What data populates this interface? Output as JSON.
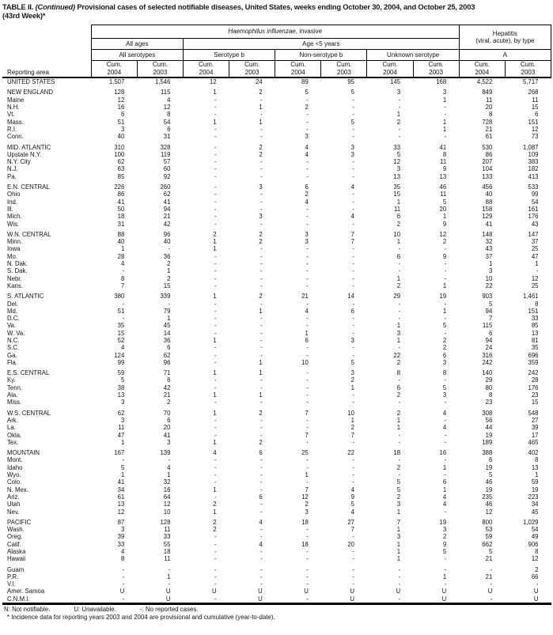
{
  "title": {
    "part1": "TABLE II. ",
    "part2": "(Continued)",
    "part3": " Provisional cases of selected notifiable diseases, United States, weeks ending October 30, 2004, and October 25, 2003",
    "line2": "(43rd Week)*"
  },
  "header": {
    "reporting_area": "Reporting area",
    "hi_italic": "Haemophilus influenzae",
    "hi_rest": ", invasive",
    "hep_line1": "Hepatitis",
    "hep_line2": "(viral, acute), by type",
    "all_ages": "All ages",
    "age_under5": "Age <5 years",
    "all_serotypes": "All serotypes",
    "serotype_b": "Serotype b",
    "non_serotype_b": "Non-serotype b",
    "unknown_serotype": "Unknown serotype",
    "hep_a": "A",
    "cum": "Cum.",
    "y2004": "2004",
    "y2003": "2003"
  },
  "rows": [
    {
      "label": "UNITED STATES",
      "kind": "total",
      "values": [
        "1,507",
        "1,546",
        "12",
        "24",
        "89",
        "95",
        "145",
        "168",
        "4,522",
        "5,717"
      ]
    },
    {
      "gap": true
    },
    {
      "label": "NEW ENGLAND",
      "kind": "total",
      "values": [
        "128",
        "115",
        "1",
        "2",
        "5",
        "5",
        "3",
        "3",
        "849",
        "268"
      ]
    },
    {
      "label": "Maine",
      "kind": "state",
      "values": [
        "12",
        "4",
        "-",
        "-",
        "-",
        "-",
        "-",
        "1",
        "11",
        "11"
      ]
    },
    {
      "label": "N.H.",
      "kind": "state",
      "values": [
        "16",
        "12",
        "-",
        "1",
        "2",
        "-",
        "-",
        "-",
        "20",
        "15"
      ]
    },
    {
      "label": "Vt.",
      "kind": "state",
      "values": [
        "6",
        "8",
        "-",
        "-",
        "-",
        "-",
        "1",
        "-",
        "8",
        "6"
      ]
    },
    {
      "label": "Mass.",
      "kind": "state",
      "values": [
        "51",
        "54",
        "1",
        "1",
        "-",
        "5",
        "2",
        "1",
        "728",
        "151"
      ]
    },
    {
      "label": "R.I.",
      "kind": "state",
      "values": [
        "3",
        "6",
        "-",
        "-",
        "-",
        "-",
        "-",
        "1",
        "21",
        "12"
      ]
    },
    {
      "label": "Conn.",
      "kind": "state",
      "values": [
        "40",
        "31",
        "-",
        "-",
        "3",
        "-",
        "-",
        "-",
        "61",
        "73"
      ]
    },
    {
      "gap": true
    },
    {
      "label": "MID. ATLANTIC",
      "kind": "total",
      "values": [
        "310",
        "328",
        "-",
        "2",
        "4",
        "3",
        "33",
        "41",
        "530",
        "1,087"
      ]
    },
    {
      "label": "Upstate N.Y.",
      "kind": "state",
      "values": [
        "100",
        "119",
        "-",
        "2",
        "4",
        "3",
        "5",
        "8",
        "86",
        "109"
      ]
    },
    {
      "label": "N.Y. City",
      "kind": "state",
      "values": [
        "62",
        "57",
        "-",
        "-",
        "-",
        "-",
        "12",
        "11",
        "207",
        "383"
      ]
    },
    {
      "label": "N.J.",
      "kind": "state",
      "values": [
        "63",
        "60",
        "-",
        "-",
        "-",
        "-",
        "3",
        "9",
        "104",
        "182"
      ]
    },
    {
      "label": "Pa.",
      "kind": "state",
      "values": [
        "85",
        "92",
        "-",
        "-",
        "-",
        "-",
        "13",
        "13",
        "133",
        "413"
      ]
    },
    {
      "gap": true
    },
    {
      "label": "E.N. CENTRAL",
      "kind": "total",
      "values": [
        "226",
        "260",
        "-",
        "3",
        "6",
        "4",
        "35",
        "46",
        "456",
        "533"
      ]
    },
    {
      "label": "Ohio",
      "kind": "state",
      "values": [
        "86",
        "62",
        "-",
        "-",
        "2",
        "-",
        "15",
        "11",
        "40",
        "99"
      ]
    },
    {
      "label": "Ind.",
      "kind": "state",
      "values": [
        "41",
        "41",
        "-",
        "-",
        "4",
        "-",
        "1",
        "5",
        "88",
        "54"
      ]
    },
    {
      "label": "Ill.",
      "kind": "state",
      "values": [
        "50",
        "94",
        "-",
        "-",
        "-",
        "-",
        "11",
        "20",
        "158",
        "161"
      ]
    },
    {
      "label": "Mich.",
      "kind": "state",
      "values": [
        "18",
        "21",
        "-",
        "3",
        "-",
        "4",
        "6",
        "1",
        "129",
        "176"
      ]
    },
    {
      "label": "Wis.",
      "kind": "state",
      "values": [
        "31",
        "42",
        "-",
        "-",
        "-",
        "-",
        "2",
        "9",
        "41",
        "43"
      ]
    },
    {
      "gap": true
    },
    {
      "label": "W.N. CENTRAL",
      "kind": "total",
      "values": [
        "88",
        "96",
        "2",
        "2",
        "3",
        "7",
        "10",
        "12",
        "148",
        "147"
      ]
    },
    {
      "label": "Minn.",
      "kind": "state",
      "values": [
        "40",
        "40",
        "1",
        "2",
        "3",
        "7",
        "1",
        "2",
        "32",
        "37"
      ]
    },
    {
      "label": "Iowa",
      "kind": "state",
      "values": [
        "1",
        "-",
        "1",
        "-",
        "-",
        "-",
        "-",
        "-",
        "43",
        "25"
      ]
    },
    {
      "label": "Mo.",
      "kind": "state",
      "values": [
        "28",
        "36",
        "-",
        "-",
        "-",
        "-",
        "6",
        "9",
        "37",
        "47"
      ]
    },
    {
      "label": "N. Dak.",
      "kind": "state",
      "values": [
        "4",
        "2",
        "-",
        "-",
        "-",
        "-",
        "-",
        "-",
        "1",
        "1"
      ]
    },
    {
      "label": "S. Dak.",
      "kind": "state",
      "values": [
        "-",
        "1",
        "-",
        "-",
        "-",
        "-",
        "-",
        "-",
        "3",
        "-"
      ]
    },
    {
      "label": "Nebr.",
      "kind": "state",
      "values": [
        "8",
        "2",
        "-",
        "-",
        "-",
        "-",
        "1",
        "-",
        "10",
        "12"
      ]
    },
    {
      "label": "Kans.",
      "kind": "state",
      "values": [
        "7",
        "15",
        "-",
        "-",
        "-",
        "-",
        "2",
        "1",
        "22",
        "25"
      ]
    },
    {
      "gap": true
    },
    {
      "label": "S. ATLANTIC",
      "kind": "total",
      "values": [
        "380",
        "339",
        "1",
        "2",
        "21",
        "14",
        "29",
        "19",
        "903",
        "1,461"
      ]
    },
    {
      "label": "Del.",
      "kind": "state",
      "values": [
        "-",
        "-",
        "-",
        "-",
        "-",
        "-",
        "-",
        "-",
        "5",
        "8"
      ]
    },
    {
      "label": "Md.",
      "kind": "state",
      "values": [
        "51",
        "79",
        "-",
        "1",
        "4",
        "6",
        "-",
        "1",
        "94",
        "151"
      ]
    },
    {
      "label": "D.C.",
      "kind": "state",
      "values": [
        "-",
        "1",
        "-",
        "-",
        "-",
        "-",
        "-",
        "-",
        "7",
        "33"
      ]
    },
    {
      "label": "Va.",
      "kind": "state",
      "values": [
        "35",
        "45",
        "-",
        "-",
        "-",
        "-",
        "1",
        "5",
        "115",
        "85"
      ]
    },
    {
      "label": "W. Va.",
      "kind": "state",
      "values": [
        "15",
        "14",
        "-",
        "-",
        "1",
        "-",
        "3",
        "-",
        "6",
        "13"
      ]
    },
    {
      "label": "N.C.",
      "kind": "state",
      "values": [
        "52",
        "36",
        "1",
        "-",
        "6",
        "3",
        "1",
        "2",
        "94",
        "81"
      ]
    },
    {
      "label": "S.C.",
      "kind": "state",
      "values": [
        "4",
        "6",
        "-",
        "-",
        "-",
        "-",
        "-",
        "2",
        "24",
        "35"
      ]
    },
    {
      "label": "Ga.",
      "kind": "state",
      "values": [
        "124",
        "62",
        "-",
        "-",
        "-",
        "-",
        "22",
        "6",
        "316",
        "696"
      ]
    },
    {
      "label": "Fla.",
      "kind": "state",
      "values": [
        "99",
        "96",
        "-",
        "1",
        "10",
        "5",
        "2",
        "3",
        "242",
        "359"
      ]
    },
    {
      "gap": true
    },
    {
      "label": "E.S. CENTRAL",
      "kind": "total",
      "values": [
        "59",
        "71",
        "1",
        "1",
        "-",
        "3",
        "8",
        "8",
        "140",
        "242"
      ]
    },
    {
      "label": "Ky.",
      "kind": "state",
      "values": [
        "5",
        "6",
        "-",
        "-",
        "-",
        "2",
        "-",
        "-",
        "29",
        "28"
      ]
    },
    {
      "label": "Tenn.",
      "kind": "state",
      "values": [
        "38",
        "42",
        "-",
        "-",
        "-",
        "1",
        "6",
        "5",
        "80",
        "176"
      ]
    },
    {
      "label": "Ala.",
      "kind": "state",
      "values": [
        "13",
        "21",
        "1",
        "1",
        "-",
        "-",
        "2",
        "3",
        "8",
        "23"
      ]
    },
    {
      "label": "Miss.",
      "kind": "state",
      "values": [
        "3",
        "2",
        "-",
        "-",
        "-",
        "-",
        "-",
        "-",
        "23",
        "15"
      ]
    },
    {
      "gap": true
    },
    {
      "label": "W.S. CENTRAL",
      "kind": "total",
      "values": [
        "62",
        "70",
        "1",
        "2",
        "7",
        "10",
        "2",
        "4",
        "308",
        "548"
      ]
    },
    {
      "label": "Ark.",
      "kind": "state",
      "values": [
        "3",
        "6",
        "-",
        "-",
        "-",
        "1",
        "1",
        "-",
        "56",
        "27"
      ]
    },
    {
      "label": "La.",
      "kind": "state",
      "values": [
        "11",
        "20",
        "-",
        "-",
        "-",
        "2",
        "1",
        "4",
        "44",
        "39"
      ]
    },
    {
      "label": "Okla.",
      "kind": "state",
      "values": [
        "47",
        "41",
        "-",
        "-",
        "7",
        "7",
        "-",
        "-",
        "19",
        "17"
      ]
    },
    {
      "label": "Tex.",
      "kind": "state",
      "values": [
        "1",
        "3",
        "1",
        "2",
        "-",
        "-",
        "-",
        "-",
        "189",
        "465"
      ]
    },
    {
      "gap": true
    },
    {
      "label": "MOUNTAIN",
      "kind": "total",
      "values": [
        "167",
        "139",
        "4",
        "6",
        "25",
        "22",
        "18",
        "16",
        "388",
        "402"
      ]
    },
    {
      "label": "Mont.",
      "kind": "state",
      "values": [
        "-",
        "-",
        "-",
        "-",
        "-",
        "-",
        "-",
        "-",
        "6",
        "8"
      ]
    },
    {
      "label": "Idaho",
      "kind": "state",
      "values": [
        "5",
        "4",
        "-",
        "-",
        "-",
        "-",
        "2",
        "1",
        "19",
        "13"
      ]
    },
    {
      "label": "Wyo.",
      "kind": "state",
      "values": [
        "1",
        "1",
        "-",
        "-",
        "1",
        "-",
        "-",
        "-",
        "5",
        "1"
      ]
    },
    {
      "label": "Colo.",
      "kind": "state",
      "values": [
        "41",
        "32",
        "-",
        "-",
        "-",
        "-",
        "5",
        "6",
        "46",
        "59"
      ]
    },
    {
      "label": "N. Mex.",
      "kind": "state",
      "values": [
        "34",
        "16",
        "1",
        "-",
        "7",
        "4",
        "5",
        "1",
        "19",
        "19"
      ]
    },
    {
      "label": "Ariz.",
      "kind": "state",
      "values": [
        "61",
        "64",
        "-",
        "6",
        "12",
        "9",
        "2",
        "4",
        "235",
        "223"
      ]
    },
    {
      "label": "Utah",
      "kind": "state",
      "values": [
        "13",
        "12",
        "2",
        "-",
        "2",
        "5",
        "3",
        "4",
        "46",
        "34"
      ]
    },
    {
      "label": "Nev.",
      "kind": "state",
      "values": [
        "12",
        "10",
        "1",
        "-",
        "3",
        "4",
        "1",
        "-",
        "12",
        "45"
      ]
    },
    {
      "gap": true
    },
    {
      "label": "PACIFIC",
      "kind": "total",
      "values": [
        "87",
        "128",
        "2",
        "4",
        "18",
        "27",
        "7",
        "19",
        "800",
        "1,029"
      ]
    },
    {
      "label": "Wash.",
      "kind": "state",
      "values": [
        "3",
        "11",
        "2",
        "-",
        "-",
        "7",
        "1",
        "3",
        "53",
        "54"
      ]
    },
    {
      "label": "Oreg.",
      "kind": "state",
      "values": [
        "39",
        "33",
        "-",
        "-",
        "-",
        "-",
        "3",
        "2",
        "59",
        "49"
      ]
    },
    {
      "label": "Calif.",
      "kind": "state",
      "values": [
        "33",
        "55",
        "-",
        "4",
        "18",
        "20",
        "1",
        "9",
        "662",
        "906"
      ]
    },
    {
      "label": "Alaska",
      "kind": "state",
      "values": [
        "4",
        "18",
        "-",
        "-",
        "-",
        "-",
        "1",
        "5",
        "5",
        "8"
      ]
    },
    {
      "label": "Hawaii",
      "kind": "state",
      "values": [
        "8",
        "11",
        "-",
        "-",
        "-",
        "-",
        "1",
        "-",
        "21",
        "12"
      ]
    },
    {
      "gap": true
    },
    {
      "label": "Guam",
      "kind": "state",
      "values": [
        "-",
        "-",
        "-",
        "-",
        "-",
        "-",
        "-",
        "-",
        "-",
        "2"
      ]
    },
    {
      "label": "P.R.",
      "kind": "state",
      "values": [
        "-",
        "1",
        "-",
        "-",
        "-",
        "-",
        "-",
        "1",
        "21",
        "66"
      ]
    },
    {
      "label": "V.I.",
      "kind": "state",
      "values": [
        "-",
        "-",
        "-",
        "-",
        "-",
        "-",
        "-",
        "-",
        "-",
        "-"
      ]
    },
    {
      "label": "Amer. Samoa",
      "kind": "state",
      "values": [
        "U",
        "U",
        "U",
        "U",
        "U",
        "U",
        "U",
        "U",
        "U",
        "U"
      ]
    },
    {
      "label": "C.N.M.I.",
      "kind": "state",
      "values": [
        "-",
        "U",
        "-",
        "U",
        "-",
        "U",
        "-",
        "U",
        "-",
        "U"
      ]
    }
  ],
  "footnotes": {
    "n": "N: Not notifiable.",
    "u": "U: Unavailable.",
    "dash": "-: No reported cases.",
    "incidence": "* Incidence data for reporting years 2003 and 2004 are provisional and cumulative (year-to-date)."
  }
}
